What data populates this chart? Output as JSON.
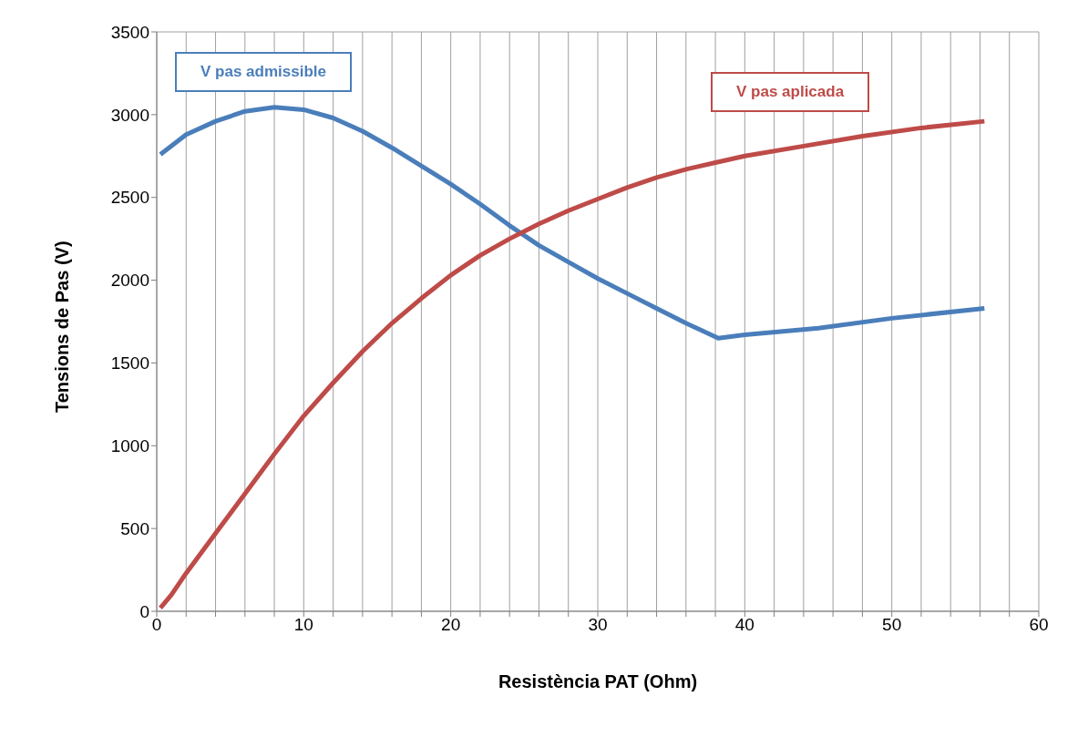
{
  "chart_data": {
    "type": "line",
    "xlabel": "Resistència PAT (Ohm)",
    "ylabel": "Tensions de Pas (V)",
    "xlim": [
      0,
      60
    ],
    "xticks": [
      0,
      {
        "value": 2,
        "label": null
      },
      {
        "value": 4,
        "label": null
      },
      {
        "value": 6,
        "label": null
      },
      {
        "value": 8,
        "label": null
      },
      10,
      {
        "value": 12,
        "label": null
      },
      {
        "value": 14,
        "label": null
      },
      {
        "value": 16,
        "label": null
      },
      {
        "value": 18,
        "label": null
      },
      20,
      {
        "value": 22,
        "label": null
      },
      {
        "value": 24,
        "label": null
      },
      {
        "value": 26,
        "label": null
      },
      {
        "value": 28,
        "label": null
      },
      30,
      {
        "value": 32,
        "label": null
      },
      {
        "value": 34,
        "label": null
      },
      {
        "value": 36,
        "label": null
      },
      {
        "value": 38,
        "label": null
      },
      40,
      {
        "value": 42,
        "label": null
      },
      {
        "value": 44,
        "label": null
      },
      {
        "value": 46,
        "label": null
      },
      {
        "value": 48,
        "label": null
      },
      50,
      {
        "value": 52,
        "label": null
      },
      {
        "value": 54,
        "label": null
      },
      {
        "value": 56,
        "label": null
      },
      {
        "value": 58,
        "label": null
      },
      60
    ],
    "ylim": [
      0,
      3500
    ],
    "yticks": [
      0,
      500,
      1000,
      1500,
      2000,
      2500,
      3000,
      3500
    ],
    "grid": true,
    "marker": "none",
    "line_style": "solid",
    "series": [
      {
        "name": "V pas admissible",
        "color": "#4a7ebb",
        "x": [
          0.25,
          2,
          4,
          6,
          8,
          10,
          12,
          14,
          16,
          18,
          20,
          22,
          24,
          26,
          28,
          30,
          32,
          34,
          36,
          38.2,
          40,
          45,
          50,
          56.3
        ],
        "values": [
          2760,
          2880,
          2960,
          3020,
          3045,
          3030,
          2980,
          2900,
          2800,
          2690,
          2580,
          2460,
          2330,
          2210,
          2110,
          2010,
          1920,
          1830,
          1740,
          1650,
          1670,
          1710,
          1770,
          1830
        ]
      },
      {
        "name": "V pas aplicada",
        "color": "#be4b48",
        "x": [
          0.25,
          1,
          2,
          4,
          6,
          8,
          10,
          12,
          14,
          16,
          18,
          20,
          22,
          24,
          26,
          28,
          30,
          32,
          34,
          36,
          38,
          40,
          44,
          48,
          52,
          56.3
        ],
        "values": [
          20,
          100,
          230,
          470,
          710,
          950,
          1180,
          1380,
          1570,
          1740,
          1890,
          2030,
          2150,
          2250,
          2340,
          2420,
          2490,
          2560,
          2620,
          2670,
          2710,
          2750,
          2810,
          2870,
          2920,
          2960
        ]
      }
    ]
  }
}
